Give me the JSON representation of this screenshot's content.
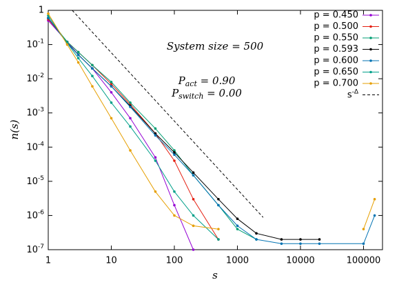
{
  "chart_data": {
    "type": "line",
    "log_x": true,
    "log_y": true,
    "xlabel": "s",
    "ylabel": "n(s)",
    "annotations": [
      {
        "text": "System size = 500"
      },
      {
        "symbol": "P",
        "sub": "act",
        "text": " = 0.90"
      },
      {
        "symbol": "P",
        "sub": "switch",
        "text": " = 0.00"
      }
    ],
    "xlim": [
      1,
      200000
    ],
    "ylim": [
      1e-07,
      1
    ],
    "xticks": [
      1,
      10,
      100,
      1000,
      10000,
      100000
    ],
    "yticks": [
      {
        "value": 1e-07,
        "label": "10^-7"
      },
      {
        "value": 1e-06,
        "label": "10^-6"
      },
      {
        "value": 1e-05,
        "label": "10^-5"
      },
      {
        "value": 0.0001,
        "label": "10^-4"
      },
      {
        "value": 0.001,
        "label": "10^-3"
      },
      {
        "value": 0.01,
        "label": "10^-2"
      },
      {
        "value": 0.1,
        "label": "10^-1"
      },
      1
    ],
    "x": [
      1,
      2,
      3,
      5,
      10,
      20,
      50,
      100,
      200,
      500,
      1000,
      2000,
      5000,
      10000,
      20000,
      100000,
      150000
    ],
    "series": [
      {
        "name": "p = 0.450",
        "color": "#9400d3",
        "values": [
          0.5,
          0.12,
          0.05,
          0.02,
          0.004,
          0.0007,
          5e-05,
          2e-06,
          1e-07,
          null,
          null,
          null,
          null,
          null,
          null,
          null,
          null
        ]
      },
      {
        "name": "p = 0.500",
        "color": "#e51e10",
        "values": [
          0.55,
          0.12,
          0.06,
          0.025,
          0.007,
          0.0018,
          0.00025,
          4e-05,
          3e-06,
          2e-07,
          null,
          null,
          null,
          null,
          null,
          null,
          null
        ]
      },
      {
        "name": "p = 0.550",
        "color": "#009e73",
        "values": [
          0.6,
          0.12,
          0.06,
          0.025,
          0.008,
          0.002,
          0.00035,
          8e-05,
          1.5e-05,
          2e-06,
          4e-07,
          2e-07,
          null,
          null,
          null,
          null,
          null
        ]
      },
      {
        "name": "p = 0.593",
        "color": "#000000",
        "values": [
          0.6,
          0.11,
          0.05,
          0.02,
          0.006,
          0.0016,
          0.00025,
          7e-05,
          1.8e-05,
          3e-06,
          8e-07,
          3e-07,
          2e-07,
          2e-07,
          2e-07,
          null,
          null
        ]
      },
      {
        "name": "p = 0.600",
        "color": "#0072b2",
        "values": [
          0.6,
          0.11,
          0.05,
          0.02,
          0.006,
          0.0015,
          0.00022,
          6e-05,
          1.5e-05,
          2e-06,
          5e-07,
          2e-07,
          1.5e-07,
          1.5e-07,
          1.5e-07,
          1.5e-07,
          1e-06
        ]
      },
      {
        "name": "p = 0.650",
        "color": "#00a08a",
        "values": [
          0.7,
          0.11,
          0.04,
          0.012,
          0.002,
          0.0004,
          4e-05,
          5e-06,
          1e-06,
          2e-07,
          null,
          null,
          null,
          null,
          null,
          null,
          null
        ]
      },
      {
        "name": "p = 0.700",
        "color": "#e69f00",
        "values": [
          0.8,
          0.1,
          0.03,
          0.006,
          0.0007,
          8e-05,
          5e-06,
          1e-06,
          5e-07,
          4e-07,
          null,
          null,
          null,
          null,
          null,
          4e-07,
          3e-06
        ]
      }
    ],
    "reference": {
      "name": "s^-Δ",
      "color": "#000000",
      "x": [
        2.4,
        2560
      ],
      "values": [
        1,
        8.8e-07
      ]
    }
  }
}
